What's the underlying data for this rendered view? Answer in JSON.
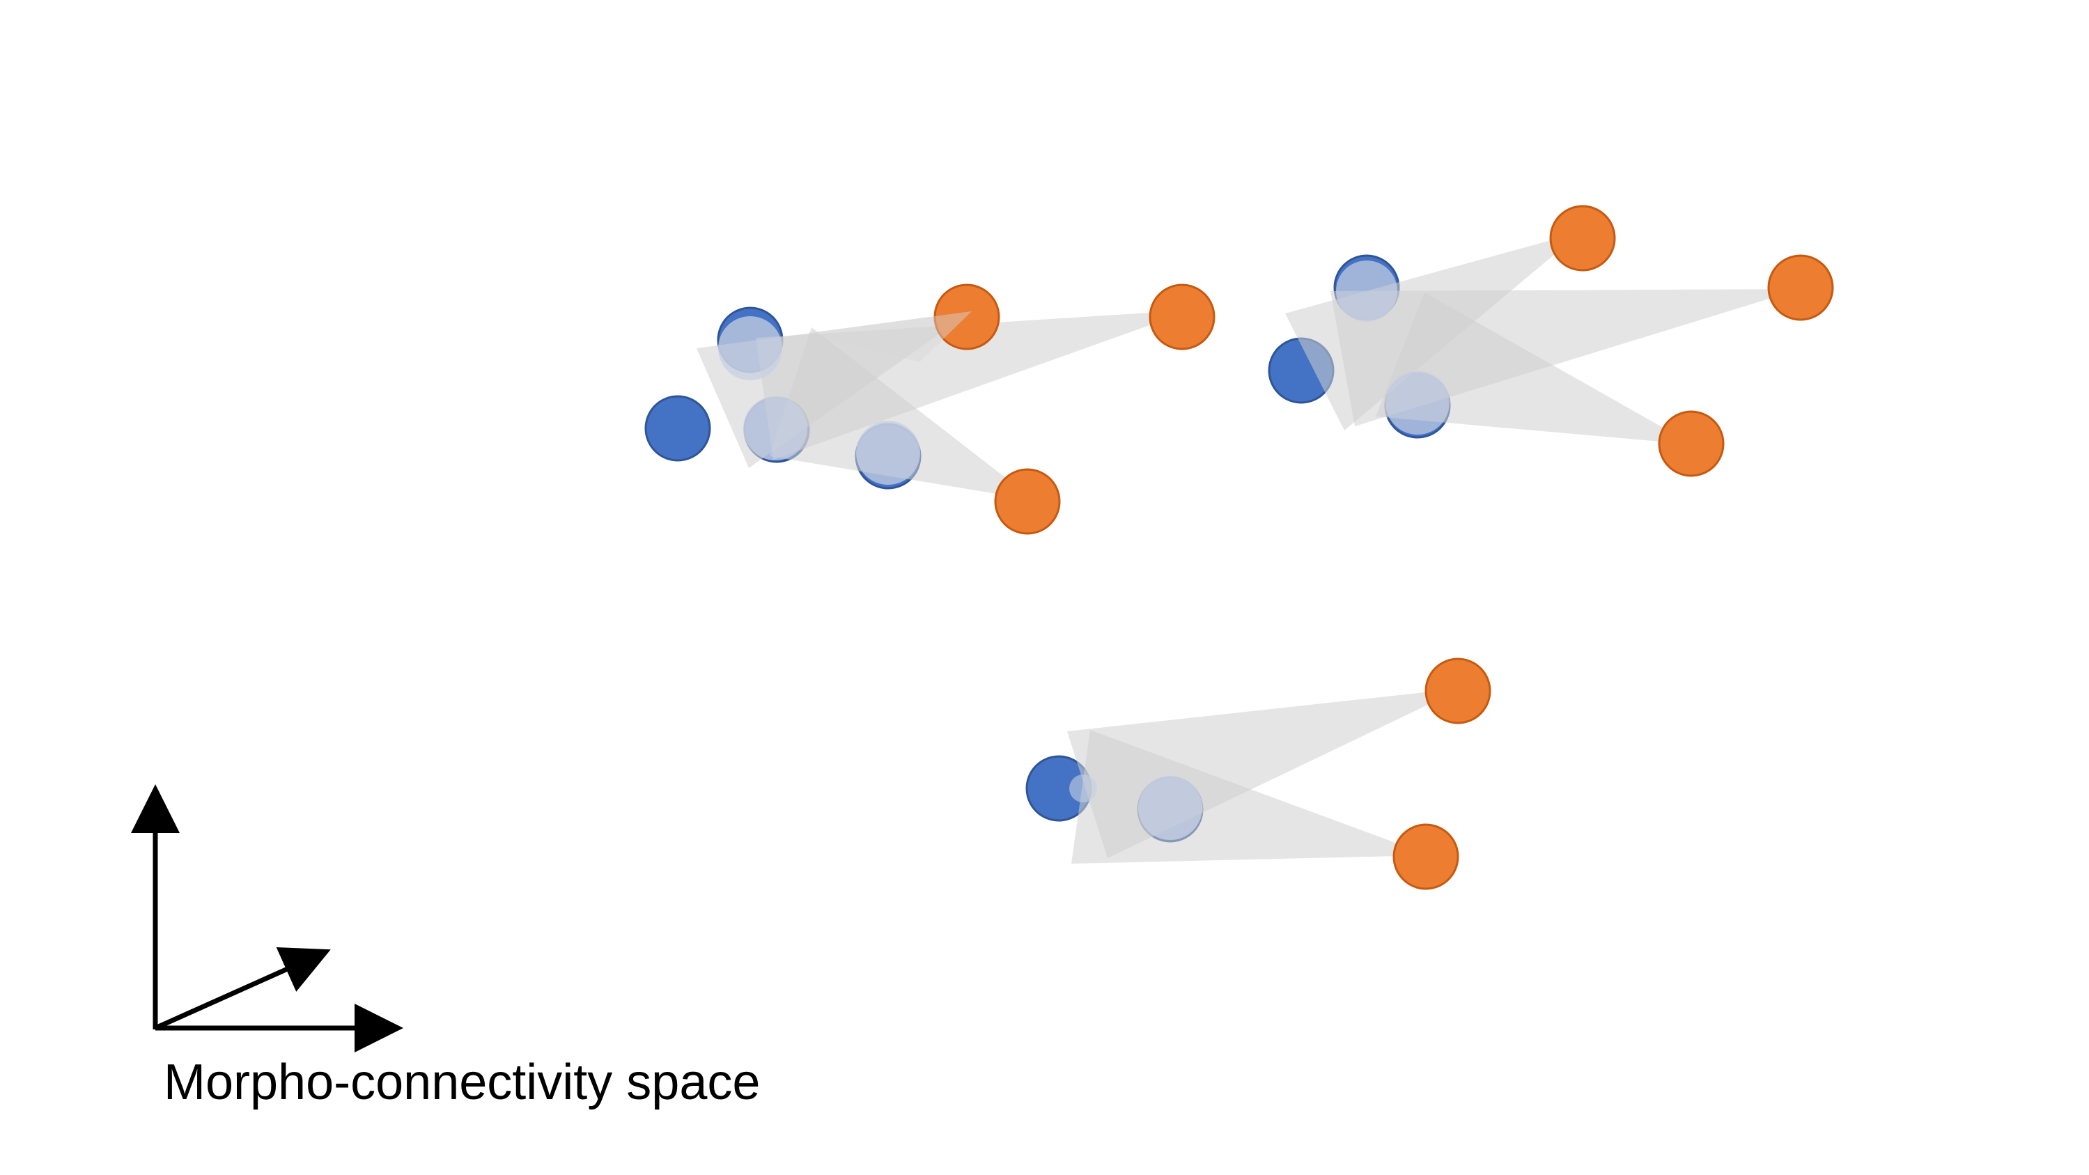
{
  "label": "Morpho-connectivity space",
  "colors": {
    "blue_fill": "#4472C4",
    "blue_stroke": "#2F5597",
    "orange_fill": "#ED7D31",
    "orange_stroke": "#C55A11",
    "cone_fill": "#D0D0D0",
    "axis": "#000000"
  },
  "clusters": [
    {
      "name": "cluster-top-left",
      "blue_nodes": 4,
      "orange_nodes": 3,
      "projections": 3
    },
    {
      "name": "cluster-top-right",
      "blue_nodes": 3,
      "orange_nodes": 3,
      "projections": 3
    },
    {
      "name": "cluster-bottom",
      "blue_nodes": 2,
      "orange_nodes": 2,
      "projections": 2
    }
  ]
}
